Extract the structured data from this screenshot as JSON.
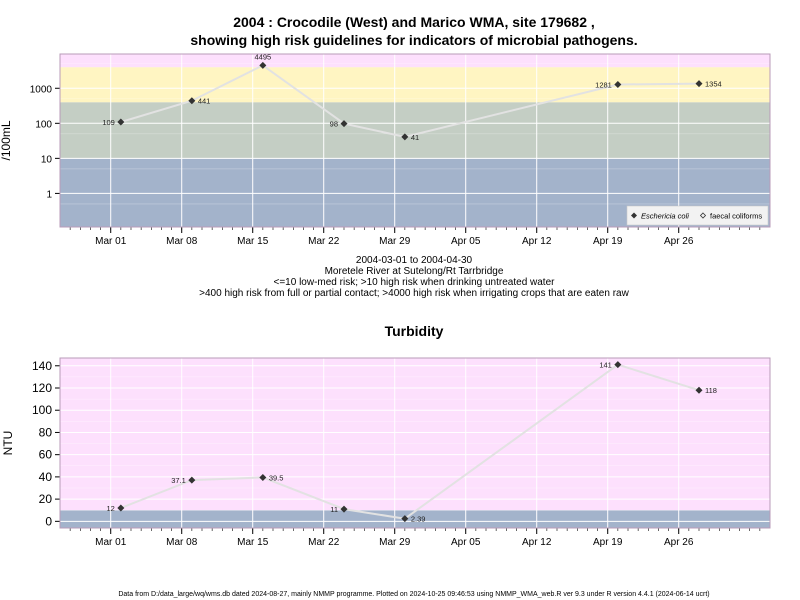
{
  "title_line1": "2004 : Crocodile (West) and Marico WMA, site 179682 ,",
  "title_line2": "showing high risk guidelines for indicators of microbial pathogens.",
  "caption_lines": [
    "2004-03-01 to 2004-04-30",
    "Moretele River at Sutelong/Rt Tarrbridge",
    "<=10 low-med risk; >10 high risk when drinking untreated water",
    ">400 high risk from full or partial contact; >4000 high risk when irrigating crops that are eaten raw"
  ],
  "footer": "Data from D:/data_large/wq/wms.db dated 2024-08-27, mainly NMMP programme. Plotted on 2024-10-25 09:46:53 using NMMP_WMA_web.R ver 9.3 under R version 4.4.1 (2024-06-14 ucrt)",
  "colors": {
    "band_low": "#a3b3cb",
    "band_mid": "#c4cec4",
    "band_high": "#fff5c2",
    "band_top": "#fde0fd",
    "line": "#e2e2e2",
    "point": "#333333",
    "grid": "#ffffff",
    "frame": "#b89bb8"
  },
  "chart_data": [
    {
      "type": "line",
      "title": "",
      "ylabel": "/100mL",
      "xlabel": "",
      "y_scale": "log",
      "ylim": [
        0.11,
        9500
      ],
      "yticks": [
        1,
        10,
        100,
        1000
      ],
      "ytick_labels": [
        "1",
        "10",
        "100",
        "1000"
      ],
      "xlim": [
        "2004-02-25",
        "2004-05-05"
      ],
      "xticks": [
        "2004-03-01",
        "2004-03-08",
        "2004-03-15",
        "2004-03-22",
        "2004-03-29",
        "2004-04-05",
        "2004-04-12",
        "2004-04-19",
        "2004-04-26"
      ],
      "xtick_labels": [
        "Mar 01",
        "Mar 08",
        "Mar 15",
        "Mar 22",
        "Mar 29",
        "Apr 05",
        "Apr 12",
        "Apr 19",
        "Apr 26"
      ],
      "bands": [
        {
          "from": 0.11,
          "to": 10,
          "color": "band_low"
        },
        {
          "from": 10,
          "to": 400,
          "color": "band_mid"
        },
        {
          "from": 400,
          "to": 4000,
          "color": "band_high"
        },
        {
          "from": 4000,
          "to": 9500,
          "color": "band_top"
        }
      ],
      "grid": true,
      "legend_position": "bottom-right",
      "series": [
        {
          "name": "Eschericia coli",
          "marker": "diamond-filled",
          "points": [
            {
              "x": "2004-03-02",
              "y": 109,
              "label": "109",
              "label_side": "left"
            },
            {
              "x": "2004-03-09",
              "y": 441,
              "label": "441",
              "label_side": "right"
            },
            {
              "x": "2004-03-16",
              "y": 4495,
              "label": "4495",
              "label_side": "above"
            },
            {
              "x": "2004-03-24",
              "y": 98,
              "label": "98",
              "label_side": "left"
            },
            {
              "x": "2004-03-30",
              "y": 41,
              "label": "41",
              "label_side": "right"
            },
            {
              "x": "2004-04-20",
              "y": 1281,
              "label": "1281",
              "label_side": "left"
            },
            {
              "x": "2004-04-28",
              "y": 1354,
              "label": "1354",
              "label_side": "right"
            }
          ]
        },
        {
          "name": "faecal coliforms",
          "marker": "diamond-open",
          "points": []
        }
      ]
    },
    {
      "type": "line",
      "title": "Turbidity",
      "ylabel": "NTU",
      "xlabel": "",
      "y_scale": "linear",
      "ylim": [
        -6,
        147
      ],
      "yticks": [
        0,
        20,
        40,
        60,
        80,
        100,
        120,
        140
      ],
      "ytick_labels": [
        "0",
        "20",
        "40",
        "60",
        "80",
        "100",
        "120",
        "140"
      ],
      "xlim": [
        "2004-02-25",
        "2004-05-05"
      ],
      "xticks": [
        "2004-03-01",
        "2004-03-08",
        "2004-03-15",
        "2004-03-22",
        "2004-03-29",
        "2004-04-05",
        "2004-04-12",
        "2004-04-19",
        "2004-04-26"
      ],
      "xtick_labels": [
        "Mar 01",
        "Mar 08",
        "Mar 15",
        "Mar 22",
        "Mar 29",
        "Apr 05",
        "Apr 12",
        "Apr 19",
        "Apr 26"
      ],
      "bands": [
        {
          "from": -6,
          "to": 10,
          "color": "band_low"
        },
        {
          "from": 10,
          "to": 147,
          "color": "band_top"
        }
      ],
      "grid": true,
      "series": [
        {
          "marker": "diamond-filled",
          "points": [
            {
              "x": "2004-03-02",
              "y": 12,
              "label": "12",
              "label_side": "left"
            },
            {
              "x": "2004-03-09",
              "y": 37.1,
              "label": "37.1",
              "label_side": "left"
            },
            {
              "x": "2004-03-16",
              "y": 39.5,
              "label": "39.5",
              "label_side": "right"
            },
            {
              "x": "2004-03-24",
              "y": 11,
              "label": "11",
              "label_side": "left"
            },
            {
              "x": "2004-03-30",
              "y": 2.39,
              "label": "2.39",
              "label_side": "right"
            },
            {
              "x": "2004-04-20",
              "y": 141,
              "label": "141",
              "label_side": "left"
            },
            {
              "x": "2004-04-28",
              "y": 118,
              "label": "118",
              "label_side": "right"
            }
          ]
        }
      ]
    }
  ]
}
